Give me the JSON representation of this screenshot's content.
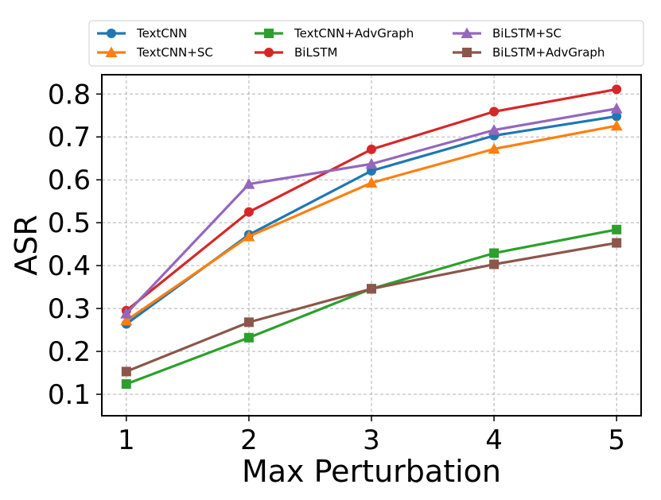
{
  "chart_data": {
    "type": "line",
    "title": "",
    "xlabel": "Max Perturbation",
    "ylabel": "ASR",
    "x": [
      1,
      2,
      3,
      4,
      5
    ],
    "x_tick_labels": [
      "1",
      "2",
      "3",
      "4",
      "5"
    ],
    "xlim": [
      0.8,
      5.2
    ],
    "y_ticks": [
      0.1,
      0.2,
      0.3,
      0.4,
      0.5,
      0.6,
      0.7,
      0.8
    ],
    "y_tick_labels": [
      "0.1",
      "0.2",
      "0.3",
      "0.4",
      "0.5",
      "0.6",
      "0.7",
      "0.8"
    ],
    "ylim": [
      0.05,
      0.845
    ],
    "grid": true,
    "legend_position": "top",
    "series": [
      {
        "name": "TextCNN",
        "color": "#1f77b4",
        "marker": "circle",
        "values": [
          0.264,
          0.472,
          0.621,
          0.703,
          0.748
        ]
      },
      {
        "name": "TextCNN+SC",
        "color": "#ff7f0e",
        "marker": "triangle",
        "values": [
          0.272,
          0.468,
          0.593,
          0.672,
          0.726
        ]
      },
      {
        "name": "TextCNN+AdvGraph",
        "color": "#2ca02c",
        "marker": "square",
        "values": [
          0.124,
          0.232,
          0.346,
          0.429,
          0.484
        ]
      },
      {
        "name": "BiLSTM",
        "color": "#d62728",
        "marker": "circle",
        "values": [
          0.295,
          0.525,
          0.671,
          0.759,
          0.811
        ]
      },
      {
        "name": "BiLSTM+SC",
        "color": "#9467bd",
        "marker": "triangle",
        "values": [
          0.288,
          0.59,
          0.637,
          0.716,
          0.766
        ]
      },
      {
        "name": "BiLSTM+AdvGraph",
        "color": "#8c564b",
        "marker": "square",
        "values": [
          0.153,
          0.268,
          0.346,
          0.403,
          0.453
        ]
      }
    ]
  }
}
